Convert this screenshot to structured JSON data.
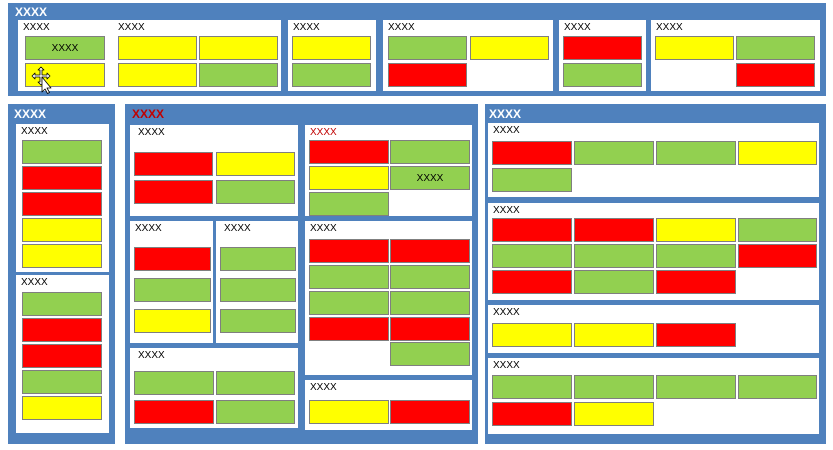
{
  "label": "XXXX",
  "colors": {
    "panel": "#4f81bd",
    "green": "#92d050",
    "yellow": "#ffff00",
    "red": "#ff0000",
    "alert_text": "#c00000"
  },
  "cursor": "move-cursor-icon"
}
